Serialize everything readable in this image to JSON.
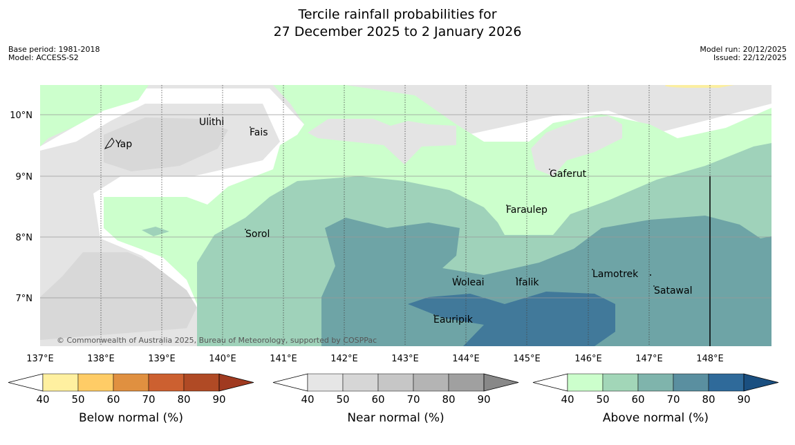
{
  "title": {
    "line1": "Tercile rainfall probabilities for",
    "line2": "27 December 2025 to 2 January 2026"
  },
  "meta": {
    "base_period": "Base period: 1981-2018",
    "model": "Model: ACCESS-S2",
    "model_run": "Model run: 20/12/2025",
    "issued": "Issued: 22/12/2025"
  },
  "copyright": "© Commonwealth of Australia 2025, Bureau of Meteorology, supported by COSPPac",
  "axes": {
    "lon_labels": [
      "137°E",
      "138°E",
      "139°E",
      "140°E",
      "141°E",
      "142°E",
      "143°E",
      "144°E",
      "145°E",
      "146°E",
      "147°E",
      "148°E"
    ],
    "lat_labels": [
      "10°N",
      "9°N",
      "8°N",
      "7°N"
    ]
  },
  "places": [
    {
      "name": "Ulithi"
    },
    {
      "name": "Fais"
    },
    {
      "name": "Yap"
    },
    {
      "name": "Gaferut"
    },
    {
      "name": "Faraulep"
    },
    {
      "name": "Sorol"
    },
    {
      "name": "Lamotrek"
    },
    {
      "name": "Woleai"
    },
    {
      "name": "Ifalik"
    },
    {
      "name": "Satawal"
    },
    {
      "name": "Eauripik"
    }
  ],
  "colorbars": [
    {
      "label": "Below normal (%)",
      "ticks": [
        "40",
        "50",
        "60",
        "70",
        "80",
        "90"
      ],
      "colors": [
        "#fff0a0",
        "#ffcc66",
        "#e09040",
        "#cc6030",
        "#b04a25"
      ],
      "extend": "#a03a20"
    },
    {
      "label": "Near normal (%)",
      "ticks": [
        "40",
        "50",
        "60",
        "70",
        "80",
        "90"
      ],
      "colors": [
        "#e6e6e6",
        "#d6d6d6",
        "#c6c6c6",
        "#b4b4b4",
        "#a0a0a0"
      ],
      "extend": "#888888"
    },
    {
      "label": "Above normal (%)",
      "ticks": [
        "40",
        "50",
        "60",
        "70",
        "80",
        "90"
      ],
      "colors": [
        "#ccffcc",
        "#a2d6b8",
        "#7fb4ac",
        "#5a8fa0",
        "#2f6a9a"
      ],
      "extend": "#1a4f80"
    }
  ],
  "colors": {
    "near_light": "#e4e4e4",
    "near_mid": "#d8d8d8",
    "above_light": "#ccffcc",
    "above_mid": "#9fd2ba",
    "above_high": "#6ea4a6",
    "above_top": "#41799a",
    "below_light": "#fbeea0"
  }
}
